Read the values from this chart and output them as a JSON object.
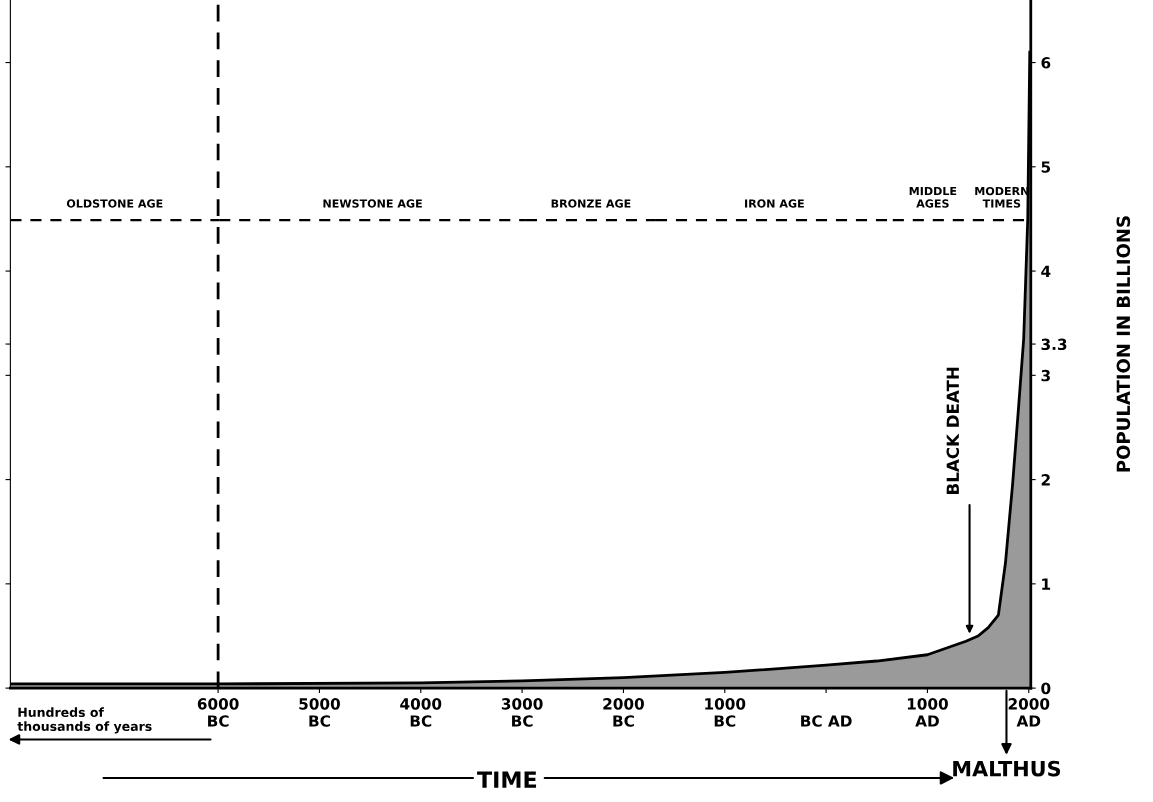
{
  "chart_data": {
    "type": "area",
    "ylabel": "POPULATION IN BILLIONS",
    "x": [
      -8050,
      -6000,
      -4000,
      -3000,
      -2000,
      -1000,
      0,
      500,
      1000,
      1380,
      1500,
      1600,
      1700,
      1770,
      1840,
      1900,
      1950,
      1990,
      2010
    ],
    "series": [
      {
        "color": "#9a9a9a",
        "values": [
          0.04,
          0.04,
          0.05,
          0.07,
          0.1,
          0.15,
          0.22,
          0.26,
          0.32,
          0.45,
          0.5,
          0.58,
          0.7,
          1.2,
          1.95,
          2.7,
          3.35,
          4.5,
          6.1
        ]
      }
    ],
    "xlim": [
      -8050,
      2020
    ],
    "xticks": [
      {
        "value": -6000,
        "label": "6000\nBC"
      },
      {
        "value": -5000,
        "label": "5000\nBC"
      },
      {
        "value": -4000,
        "label": "4000\nBC"
      },
      {
        "value": -3000,
        "label": "3000\nBC"
      },
      {
        "value": -2000,
        "label": "2000\nBC"
      },
      {
        "value": -1000,
        "label": "1000\nBC"
      },
      {
        "value": 0,
        "label": "\nBC AD"
      },
      {
        "value": 1000,
        "label": "1000\nAD"
      },
      {
        "value": 2000,
        "label": "2000\nAD"
      }
    ],
    "ylim": [
      0,
      6.6
    ],
    "yticks": [
      0,
      1,
      2,
      3,
      3.3,
      4,
      5,
      6
    ],
    "ref_lines": [
      {
        "axis": "x",
        "value": -6000,
        "line_style": "dashed",
        "color": "#000000"
      }
    ],
    "annotations": [
      {
        "text": "MALTHUS",
        "x": 1780,
        "y": 0
      },
      "Hundreds of\nthousands of years",
      "TIME",
      "BLACK DEATH",
      "OLDSTONE AGE",
      "NEWSTONE AGE",
      "BRONZE AGE",
      "IRON AGE",
      "MIDDLE\nAGES",
      "MODERN\nTIMES"
    ],
    "grid": false
  }
}
